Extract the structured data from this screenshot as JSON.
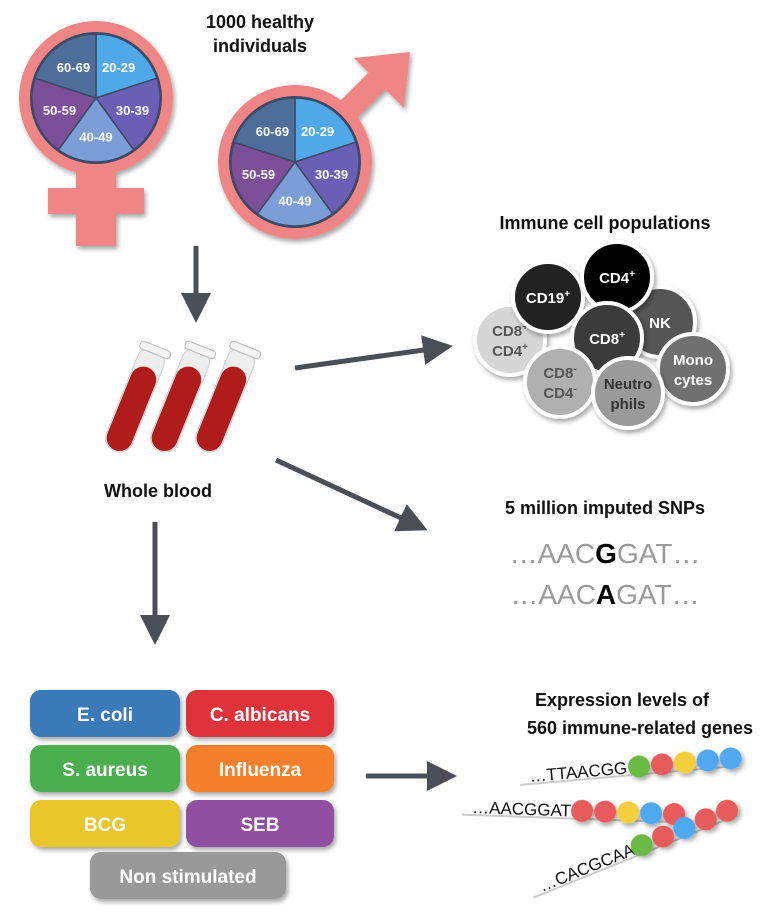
{
  "title_individuals": [
    "1000 healthy",
    "individuals"
  ],
  "age_groups": [
    "20-29",
    "30-39",
    "40-49",
    "50-59",
    "60-69"
  ],
  "age_colors": [
    "#4fa8e8",
    "#6a5fb5",
    "#7b9ed6",
    "#7d4f98",
    "#4e6e99"
  ],
  "symbol_color": "#f08585",
  "arrow_color": "#4a4f57",
  "whole_blood": "Whole blood",
  "immune_title": "Immune cell populations",
  "cells": [
    {
      "name": "cd8-cd4-plus",
      "lines": [
        [
          "CD8",
          "+"
        ],
        [
          "CD4",
          "+"
        ]
      ],
      "fill": "#d6d6d6",
      "text": "#555555"
    },
    {
      "name": "cd19",
      "lines": [
        [
          "CD19",
          "+"
        ]
      ],
      "fill": "#222222",
      "text": "#ffffff"
    },
    {
      "name": "nk",
      "lines": [
        [
          "NK",
          ""
        ]
      ],
      "fill": "#555555",
      "text": "#ffffff"
    },
    {
      "name": "cd4",
      "lines": [
        [
          "CD4",
          "+"
        ]
      ],
      "fill": "#000000",
      "text": "#ffffff"
    },
    {
      "name": "cd8",
      "lines": [
        [
          "CD8",
          "+"
        ]
      ],
      "fill": "#3a3a3a",
      "text": "#ffffff"
    },
    {
      "name": "cd8-cd4-neg",
      "lines": [
        [
          "CD8",
          "-"
        ],
        [
          "CD4",
          "-"
        ]
      ],
      "fill": "#b0b0b0",
      "text": "#555555"
    },
    {
      "name": "monocytes",
      "lines": [
        [
          "Mono",
          ""
        ],
        [
          "cytes",
          ""
        ]
      ],
      "fill": "#707070",
      "text": "#ffffff"
    },
    {
      "name": "neutrophils",
      "lines": [
        [
          "Neutro",
          ""
        ],
        [
          "phils",
          ""
        ]
      ],
      "fill": "#9a9a9a",
      "text": "#333333"
    }
  ],
  "snp_title": "5 million imputed SNPs",
  "snp_sequences": [
    {
      "prefix": "…AAC",
      "variant": "G",
      "suffix": "GAT…"
    },
    {
      "prefix": "…AAC",
      "variant": "A",
      "suffix": "GAT…"
    }
  ],
  "stimuli": [
    {
      "label": "E. coli",
      "color": "#3a7ab8"
    },
    {
      "label": "C. albicans",
      "color": "#e0303a"
    },
    {
      "label": "S. aureus",
      "color": "#4caf50"
    },
    {
      "label": "Influenza",
      "color": "#f57f2a"
    },
    {
      "label": "BCG",
      "color": "#e9c62b"
    },
    {
      "label": "SEB",
      "color": "#9050a0"
    },
    {
      "label": "Non stimulated",
      "color": "#999999"
    }
  ],
  "expression_title": [
    "Expression levels of",
    "560 immune-related genes"
  ],
  "strands": [
    {
      "seq": "…TTAACGG",
      "beads": [
        "#6bbb45",
        "#e85c5c",
        "#f3cf3d",
        "#4fa8f0",
        "#4fa8f0"
      ]
    },
    {
      "seq": "…AACGGAT",
      "beads": [
        "#e85c5c",
        "#e85c5c",
        "#f3cf3d",
        "#4fa8f0",
        "#e85c5c"
      ]
    },
    {
      "seq": "…CACGCAA",
      "beads": [
        "#6bbb45",
        "#e85c5c",
        "#4fa8f0",
        "#e85c5c",
        "#e85c5c"
      ]
    }
  ]
}
